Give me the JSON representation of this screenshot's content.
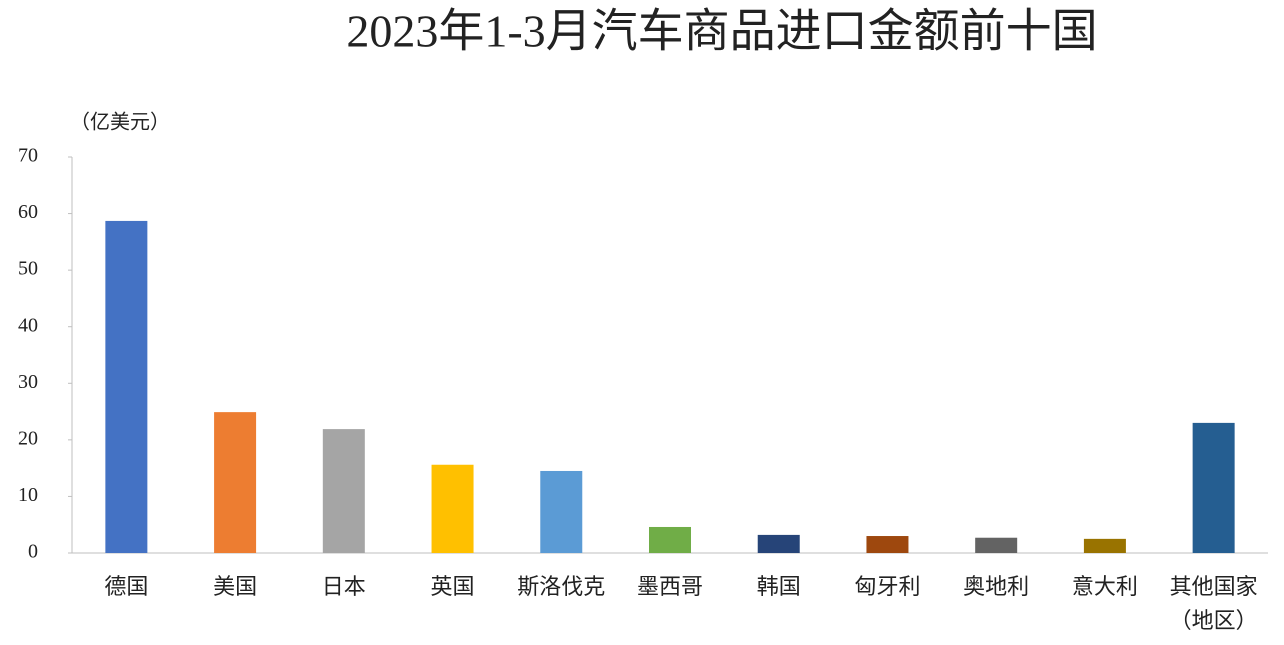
{
  "chart_data": {
    "type": "bar",
    "title": "2023年1-3月汽车商品进口金额前十国",
    "y_unit": "（亿美元）",
    "categories": [
      "德国",
      "美国",
      "日本",
      "英国",
      "斯洛伐克",
      "墨西哥",
      "韩国",
      "匈牙利",
      "奥地利",
      "意大利",
      "其他国家（地区）"
    ],
    "values": [
      58.7,
      24.9,
      21.9,
      15.6,
      14.5,
      4.6,
      3.2,
      3.0,
      2.7,
      2.5,
      23.0
    ],
    "colors": [
      "#4472c4",
      "#ed7d31",
      "#a5a5a5",
      "#ffc000",
      "#5b9bd5",
      "#70ad47",
      "#264478",
      "#9e480e",
      "#636363",
      "#997300",
      "#255e91"
    ],
    "ylim": [
      0,
      70
    ],
    "yticks": [
      0,
      10,
      20,
      30,
      40,
      50,
      60,
      70
    ],
    "grid": false
  }
}
